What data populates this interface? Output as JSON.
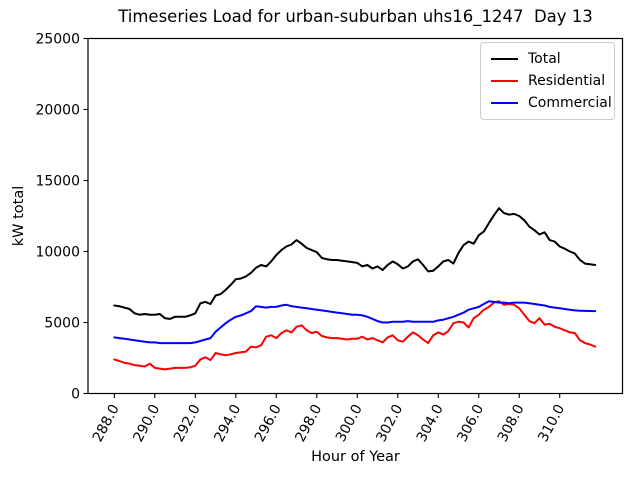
{
  "figure": {
    "title": "Timeseries Load for urban-suburban uhs16_1247  Day 13",
    "xlabel": "Hour of Year",
    "ylabel": "kW total"
  },
  "legend": {
    "position": "upper right",
    "entries": [
      {
        "label": "Total",
        "color": "#000000"
      },
      {
        "label": "Residential",
        "color": "#ff0000"
      },
      {
        "label": "Commercial",
        "color": "#0000ff"
      }
    ]
  },
  "chart_data": {
    "type": "line",
    "title": "Timeseries Load for urban-suburban uhs16_1247  Day 13",
    "xlabel": "Hour of Year",
    "ylabel": "kW total",
    "grid": false,
    "legend_position": "upper right",
    "x_start": 288.0,
    "x_step": 0.25,
    "x_end": 311.75,
    "xlim": [
      286.7,
      313.1
    ],
    "ylim": [
      0,
      25000
    ],
    "xticks": [
      288.0,
      290.0,
      292.0,
      294.0,
      296.0,
      298.0,
      300.0,
      302.0,
      304.0,
      306.0,
      308.0,
      310.0
    ],
    "yticks": [
      0,
      5000,
      10000,
      15000,
      20000,
      25000
    ],
    "series": [
      {
        "name": "Total",
        "color": "#000000",
        "values": [
          6200,
          6150,
          6050,
          5950,
          5650,
          5550,
          5600,
          5550,
          5550,
          5600,
          5300,
          5250,
          5400,
          5400,
          5400,
          5500,
          5650,
          6350,
          6450,
          6300,
          6900,
          7000,
          7300,
          7650,
          8050,
          8100,
          8250,
          8500,
          8850,
          9050,
          8950,
          9300,
          9750,
          10100,
          10350,
          10500,
          10800,
          10550,
          10250,
          10100,
          9950,
          9550,
          9450,
          9400,
          9400,
          9350,
          9300,
          9250,
          9200,
          8950,
          9050,
          8800,
          8950,
          8700,
          9050,
          9300,
          9100,
          8800,
          8950,
          9300,
          9450,
          9050,
          8600,
          8650,
          8950,
          9300,
          9400,
          9150,
          9900,
          10450,
          10700,
          10550,
          11150,
          11400,
          12000,
          12550,
          13050,
          12700,
          12600,
          12650,
          12500,
          12200,
          11750,
          11500,
          11200,
          11350,
          10800,
          10700,
          10350,
          10200,
          10000,
          9850,
          9400,
          9150,
          9100,
          9050
        ]
      },
      {
        "name": "Residential",
        "color": "#ff0000",
        "values": [
          2400,
          2280,
          2160,
          2100,
          2000,
          1950,
          1900,
          2100,
          1800,
          1750,
          1700,
          1750,
          1800,
          1800,
          1800,
          1850,
          1950,
          2400,
          2550,
          2350,
          2850,
          2750,
          2700,
          2750,
          2850,
          2900,
          2950,
          3300,
          3250,
          3400,
          4000,
          4100,
          3900,
          4250,
          4450,
          4300,
          4700,
          4800,
          4450,
          4250,
          4350,
          4050,
          3950,
          3900,
          3900,
          3850,
          3800,
          3850,
          3850,
          4000,
          3800,
          3900,
          3750,
          3600,
          3950,
          4100,
          3750,
          3650,
          4000,
          4300,
          4100,
          3800,
          3550,
          4100,
          4300,
          4150,
          4400,
          4950,
          5050,
          5000,
          4650,
          5300,
          5550,
          5900,
          6100,
          6400,
          6500,
          6250,
          6300,
          6250,
          6000,
          5550,
          5100,
          4950,
          5300,
          4850,
          4900,
          4700,
          4600,
          4450,
          4300,
          4250,
          3750,
          3550,
          3450,
          3300
        ]
      },
      {
        "name": "Commercial",
        "color": "#0000ff",
        "values": [
          3950,
          3900,
          3850,
          3800,
          3750,
          3700,
          3650,
          3600,
          3600,
          3550,
          3550,
          3550,
          3550,
          3550,
          3550,
          3550,
          3600,
          3700,
          3800,
          3900,
          4350,
          4650,
          4950,
          5200,
          5400,
          5500,
          5650,
          5800,
          6150,
          6100,
          6050,
          6100,
          6100,
          6200,
          6250,
          6150,
          6100,
          6050,
          6000,
          5950,
          5900,
          5850,
          5800,
          5750,
          5700,
          5650,
          5600,
          5550,
          5550,
          5500,
          5400,
          5250,
          5100,
          5000,
          5000,
          5050,
          5050,
          5050,
          5100,
          5050,
          5050,
          5050,
          5050,
          5050,
          5150,
          5200,
          5300,
          5400,
          5550,
          5700,
          5900,
          6000,
          6100,
          6300,
          6500,
          6450,
          6400,
          6400,
          6350,
          6400,
          6400,
          6400,
          6350,
          6300,
          6250,
          6200,
          6100,
          6050,
          6000,
          5950,
          5900,
          5850,
          5830,
          5820,
          5810,
          5800
        ]
      }
    ]
  }
}
